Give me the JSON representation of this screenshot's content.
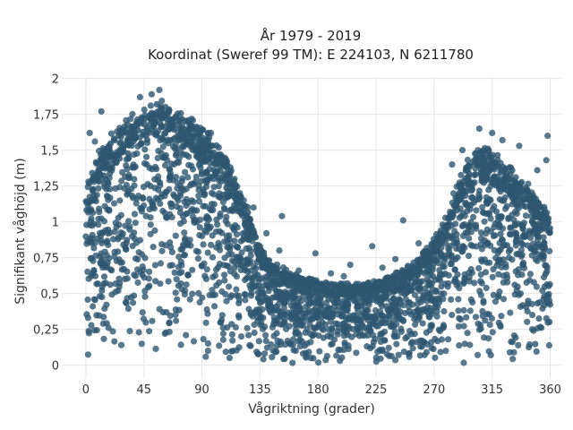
{
  "chart_data": {
    "type": "scatter",
    "title": "År 1979 - 2019",
    "subtitle": "Koordinat (Sweref 99 TM): E 224103, N 6211780",
    "xlabel": "Vågriktning (grader)",
    "ylabel": "Signifikant våghöjd (m)",
    "xlim": [
      -18,
      368
    ],
    "ylim": [
      -0.09,
      2.01
    ],
    "x_ticks": [
      0,
      45,
      90,
      135,
      180,
      225,
      270,
      315,
      360
    ],
    "x_tick_labels": [
      "0",
      "45",
      "90",
      "135",
      "180",
      "225",
      "270",
      "315",
      "360"
    ],
    "y_ticks": [
      0,
      0.25,
      0.5,
      0.75,
      1,
      1.25,
      1.5,
      1.75,
      2
    ],
    "y_tick_labels": [
      "0",
      "0,25",
      "0,5",
      "0,75",
      "1",
      "1,25",
      "1,5",
      "1,75",
      "2"
    ],
    "grid": true,
    "marker_color": "#2e5670",
    "background_color": "#ffffff",
    "grid_color": "#e6e6e6",
    "envelope_upper": [
      {
        "x": 0,
        "y": 1.2
      },
      {
        "x": 5,
        "y": 1.35
      },
      {
        "x": 10,
        "y": 1.5
      },
      {
        "x": 20,
        "y": 1.62
      },
      {
        "x": 30,
        "y": 1.72
      },
      {
        "x": 45,
        "y": 1.8
      },
      {
        "x": 55,
        "y": 1.88
      },
      {
        "x": 65,
        "y": 1.82
      },
      {
        "x": 80,
        "y": 1.75
      },
      {
        "x": 95,
        "y": 1.62
      },
      {
        "x": 105,
        "y": 1.5
      },
      {
        "x": 115,
        "y": 1.33
      },
      {
        "x": 125,
        "y": 1.12
      },
      {
        "x": 135,
        "y": 0.85
      },
      {
        "x": 145,
        "y": 0.72
      },
      {
        "x": 160,
        "y": 0.65
      },
      {
        "x": 175,
        "y": 0.6
      },
      {
        "x": 190,
        "y": 0.57
      },
      {
        "x": 205,
        "y": 0.57
      },
      {
        "x": 220,
        "y": 0.58
      },
      {
        "x": 235,
        "y": 0.62
      },
      {
        "x": 250,
        "y": 0.7
      },
      {
        "x": 262,
        "y": 0.8
      },
      {
        "x": 275,
        "y": 0.95
      },
      {
        "x": 285,
        "y": 1.2
      },
      {
        "x": 295,
        "y": 1.42
      },
      {
        "x": 305,
        "y": 1.55
      },
      {
        "x": 315,
        "y": 1.5
      },
      {
        "x": 325,
        "y": 1.42
      },
      {
        "x": 335,
        "y": 1.33
      },
      {
        "x": 345,
        "y": 1.25
      },
      {
        "x": 355,
        "y": 1.12
      },
      {
        "x": 360,
        "y": 1.0
      }
    ],
    "outliers": [
      {
        "x": 57,
        "y": 1.92
      },
      {
        "x": 51,
        "y": 1.89
      },
      {
        "x": 42,
        "y": 1.87
      },
      {
        "x": 12,
        "y": 1.77
      },
      {
        "x": 3,
        "y": 1.62
      },
      {
        "x": 7,
        "y": 1.56
      },
      {
        "x": 152,
        "y": 1.04
      },
      {
        "x": 246,
        "y": 1.01
      },
      {
        "x": 358,
        "y": 1.6
      },
      {
        "x": 357,
        "y": 1.43
      },
      {
        "x": 305,
        "y": 1.65
      },
      {
        "x": 323,
        "y": 1.57
      },
      {
        "x": 336,
        "y": 1.53
      },
      {
        "x": 284,
        "y": 1.4
      },
      {
        "x": 178,
        "y": 0.78
      },
      {
        "x": 222,
        "y": 0.83
      },
      {
        "x": 205,
        "y": 0.7
      },
      {
        "x": 190,
        "y": 0.64
      },
      {
        "x": 165,
        "y": 0.66
      },
      {
        "x": 240,
        "y": 0.74
      },
      {
        "x": 258,
        "y": 0.85
      },
      {
        "x": 140,
        "y": 0.92
      },
      {
        "x": 130,
        "y": 1.1
      },
      {
        "x": 112,
        "y": 1.38
      },
      {
        "x": 97,
        "y": 1.62
      },
      {
        "x": 2,
        "y": 1.28
      },
      {
        "x": 350,
        "y": 1.36
      },
      {
        "x": 315,
        "y": 1.62
      },
      {
        "x": 292,
        "y": 1.5
      },
      {
        "x": 230,
        "y": 0.68
      },
      {
        "x": 150,
        "y": 0.8
      },
      {
        "x": 200,
        "y": 0.62
      }
    ]
  }
}
